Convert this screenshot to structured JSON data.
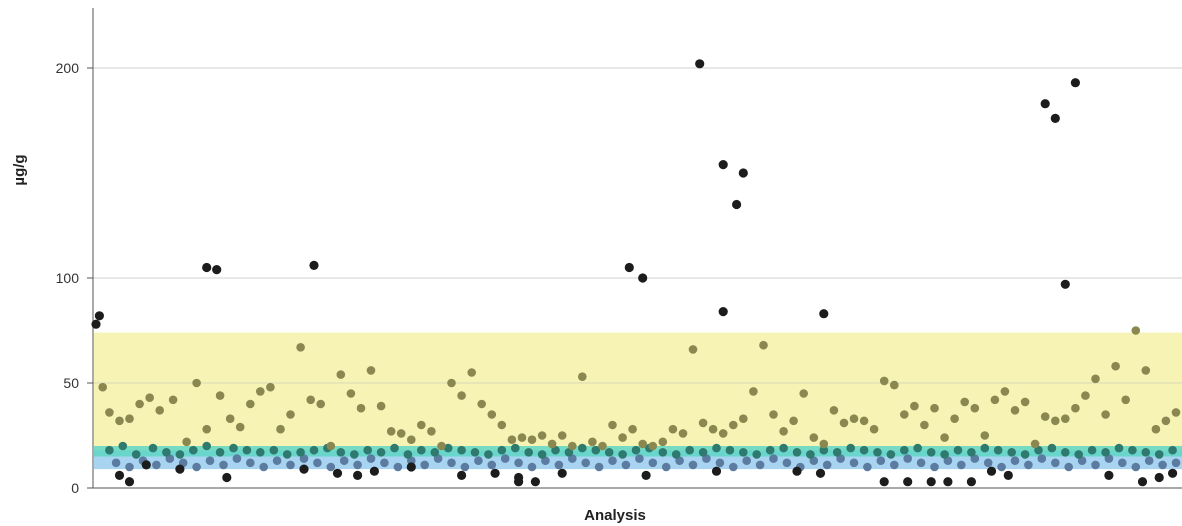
{
  "chart_data": {
    "type": "scatter",
    "title": "",
    "xlabel": "Analysis",
    "ylabel": "µg/g",
    "ylim": [
      0,
      228
    ],
    "y_ticks": [
      {
        "value": 0,
        "label": "0"
      },
      {
        "value": 50,
        "label": "50"
      },
      {
        "value": 100,
        "label": "100"
      },
      {
        "value": 200,
        "label": "200"
      }
    ],
    "grid": "horizontal",
    "reference_bands": [
      {
        "name": "yellow-band",
        "from": 18,
        "to": 74,
        "color": "#f7f3b4"
      },
      {
        "name": "blue-band",
        "from": 9,
        "to": 18,
        "color": "#a8d4f2"
      },
      {
        "name": "teal-band",
        "from": 15,
        "to": 20,
        "color": "#5fd6c4"
      }
    ],
    "colors": {
      "olive": "#8a8850",
      "dark": "#1c1c1c",
      "teal": "#2e7a6e",
      "blue": "#5c7ba0"
    },
    "series": [
      {
        "color_name": "dark",
        "points": [
          [
            1,
            78
          ],
          [
            2,
            82
          ],
          [
            34,
            105
          ],
          [
            37,
            104
          ],
          [
            66,
            106
          ],
          [
            160,
            105
          ],
          [
            164,
            100
          ],
          [
            181,
            202
          ],
          [
            188,
            154
          ],
          [
            192,
            135
          ],
          [
            194,
            150
          ],
          [
            188,
            84
          ],
          [
            218,
            83
          ],
          [
            284,
            183
          ],
          [
            287,
            176
          ],
          [
            290,
            97
          ],
          [
            293,
            193
          ],
          [
            8,
            6
          ],
          [
            11,
            3
          ],
          [
            16,
            11
          ],
          [
            26,
            9
          ],
          [
            40,
            5
          ],
          [
            63,
            9
          ],
          [
            73,
            7
          ],
          [
            79,
            6
          ],
          [
            84,
            8
          ],
          [
            95,
            10
          ],
          [
            110,
            6
          ],
          [
            120,
            7
          ],
          [
            127,
            5
          ],
          [
            140,
            7
          ],
          [
            127,
            3
          ],
          [
            132,
            3
          ],
          [
            165,
            6
          ],
          [
            186,
            8
          ],
          [
            210,
            8
          ],
          [
            217,
            7
          ],
          [
            236,
            3
          ],
          [
            243,
            3
          ],
          [
            250,
            3
          ],
          [
            255,
            3
          ],
          [
            262,
            3
          ],
          [
            268,
            8
          ],
          [
            273,
            6
          ],
          [
            303,
            6
          ],
          [
            313,
            3
          ],
          [
            318,
            5
          ],
          [
            322,
            7
          ]
        ]
      },
      {
        "color_name": "olive",
        "points": [
          [
            3,
            48
          ],
          [
            5,
            36
          ],
          [
            8,
            32
          ],
          [
            11,
            33
          ],
          [
            14,
            40
          ],
          [
            17,
            43
          ],
          [
            20,
            37
          ],
          [
            24,
            42
          ],
          [
            28,
            22
          ],
          [
            31,
            50
          ],
          [
            34,
            28
          ],
          [
            38,
            44
          ],
          [
            41,
            33
          ],
          [
            44,
            29
          ],
          [
            47,
            40
          ],
          [
            50,
            46
          ],
          [
            53,
            48
          ],
          [
            56,
            28
          ],
          [
            59,
            35
          ],
          [
            62,
            67
          ],
          [
            65,
            42
          ],
          [
            68,
            40
          ],
          [
            71,
            20
          ],
          [
            74,
            54
          ],
          [
            77,
            45
          ],
          [
            80,
            38
          ],
          [
            83,
            56
          ],
          [
            86,
            39
          ],
          [
            89,
            27
          ],
          [
            92,
            26
          ],
          [
            95,
            23
          ],
          [
            98,
            30
          ],
          [
            101,
            27
          ],
          [
            104,
            20
          ],
          [
            107,
            50
          ],
          [
            110,
            44
          ],
          [
            113,
            55
          ],
          [
            116,
            40
          ],
          [
            119,
            35
          ],
          [
            122,
            30
          ],
          [
            125,
            23
          ],
          [
            128,
            24
          ],
          [
            131,
            23
          ],
          [
            134,
            25
          ],
          [
            137,
            21
          ],
          [
            140,
            25
          ],
          [
            143,
            20
          ],
          [
            146,
            53
          ],
          [
            149,
            22
          ],
          [
            152,
            20
          ],
          [
            155,
            30
          ],
          [
            158,
            24
          ],
          [
            161,
            28
          ],
          [
            164,
            21
          ],
          [
            167,
            20
          ],
          [
            170,
            22
          ],
          [
            173,
            28
          ],
          [
            176,
            26
          ],
          [
            179,
            66
          ],
          [
            182,
            31
          ],
          [
            185,
            28
          ],
          [
            188,
            26
          ],
          [
            191,
            30
          ],
          [
            194,
            33
          ],
          [
            197,
            46
          ],
          [
            200,
            68
          ],
          [
            203,
            35
          ],
          [
            206,
            27
          ],
          [
            209,
            32
          ],
          [
            212,
            45
          ],
          [
            215,
            24
          ],
          [
            218,
            21
          ],
          [
            221,
            37
          ],
          [
            224,
            31
          ],
          [
            227,
            33
          ],
          [
            230,
            32
          ],
          [
            233,
            28
          ],
          [
            236,
            51
          ],
          [
            239,
            49
          ],
          [
            242,
            35
          ],
          [
            245,
            39
          ],
          [
            248,
            30
          ],
          [
            251,
            38
          ],
          [
            254,
            24
          ],
          [
            257,
            33
          ],
          [
            260,
            41
          ],
          [
            263,
            38
          ],
          [
            266,
            25
          ],
          [
            269,
            42
          ],
          [
            272,
            46
          ],
          [
            275,
            37
          ],
          [
            278,
            41
          ],
          [
            281,
            21
          ],
          [
            284,
            34
          ],
          [
            287,
            32
          ],
          [
            290,
            33
          ],
          [
            293,
            38
          ],
          [
            296,
            44
          ],
          [
            299,
            52
          ],
          [
            302,
            35
          ],
          [
            305,
            58
          ],
          [
            308,
            42
          ],
          [
            311,
            75
          ],
          [
            314,
            56
          ],
          [
            317,
            28
          ],
          [
            320,
            32
          ],
          [
            323,
            36
          ]
        ]
      },
      {
        "color_name": "teal",
        "points": [
          [
            5,
            18
          ],
          [
            9,
            20
          ],
          [
            13,
            16
          ],
          [
            18,
            19
          ],
          [
            22,
            17
          ],
          [
            26,
            16
          ],
          [
            30,
            18
          ],
          [
            34,
            20
          ],
          [
            38,
            17
          ],
          [
            42,
            19
          ],
          [
            46,
            18
          ],
          [
            50,
            17
          ],
          [
            54,
            18
          ],
          [
            58,
            16
          ],
          [
            62,
            17
          ],
          [
            66,
            18
          ],
          [
            70,
            19
          ],
          [
            74,
            17
          ],
          [
            78,
            16
          ],
          [
            82,
            18
          ],
          [
            86,
            17
          ],
          [
            90,
            19
          ],
          [
            94,
            16
          ],
          [
            98,
            18
          ],
          [
            102,
            17
          ],
          [
            106,
            19
          ],
          [
            110,
            18
          ],
          [
            114,
            17
          ],
          [
            118,
            16
          ],
          [
            122,
            18
          ],
          [
            126,
            19
          ],
          [
            130,
            17
          ],
          [
            134,
            16
          ],
          [
            138,
            18
          ],
          [
            142,
            17
          ],
          [
            146,
            19
          ],
          [
            150,
            18
          ],
          [
            154,
            17
          ],
          [
            158,
            16
          ],
          [
            162,
            18
          ],
          [
            166,
            19
          ],
          [
            170,
            17
          ],
          [
            174,
            16
          ],
          [
            178,
            18
          ],
          [
            182,
            17
          ],
          [
            186,
            19
          ],
          [
            190,
            18
          ],
          [
            194,
            17
          ],
          [
            198,
            16
          ],
          [
            202,
            18
          ],
          [
            206,
            19
          ],
          [
            210,
            17
          ],
          [
            214,
            16
          ],
          [
            218,
            18
          ],
          [
            222,
            17
          ],
          [
            226,
            19
          ],
          [
            230,
            18
          ],
          [
            234,
            17
          ],
          [
            238,
            16
          ],
          [
            242,
            18
          ],
          [
            246,
            19
          ],
          [
            250,
            17
          ],
          [
            254,
            16
          ],
          [
            258,
            18
          ],
          [
            262,
            17
          ],
          [
            266,
            19
          ],
          [
            270,
            18
          ],
          [
            274,
            17
          ],
          [
            278,
            16
          ],
          [
            282,
            18
          ],
          [
            286,
            19
          ],
          [
            290,
            17
          ],
          [
            294,
            16
          ],
          [
            298,
            18
          ],
          [
            302,
            17
          ],
          [
            306,
            19
          ],
          [
            310,
            18
          ],
          [
            314,
            17
          ],
          [
            318,
            16
          ],
          [
            322,
            18
          ]
        ]
      },
      {
        "color_name": "blue",
        "points": [
          [
            7,
            12
          ],
          [
            11,
            10
          ],
          [
            15,
            13
          ],
          [
            19,
            11
          ],
          [
            23,
            14
          ],
          [
            27,
            12
          ],
          [
            31,
            10
          ],
          [
            35,
            13
          ],
          [
            39,
            11
          ],
          [
            43,
            14
          ],
          [
            47,
            12
          ],
          [
            51,
            10
          ],
          [
            55,
            13
          ],
          [
            59,
            11
          ],
          [
            63,
            14
          ],
          [
            67,
            12
          ],
          [
            71,
            10
          ],
          [
            75,
            13
          ],
          [
            79,
            11
          ],
          [
            83,
            14
          ],
          [
            87,
            12
          ],
          [
            91,
            10
          ],
          [
            95,
            13
          ],
          [
            99,
            11
          ],
          [
            103,
            14
          ],
          [
            107,
            12
          ],
          [
            111,
            10
          ],
          [
            115,
            13
          ],
          [
            119,
            11
          ],
          [
            123,
            14
          ],
          [
            127,
            12
          ],
          [
            131,
            10
          ],
          [
            135,
            13
          ],
          [
            139,
            11
          ],
          [
            143,
            14
          ],
          [
            147,
            12
          ],
          [
            151,
            10
          ],
          [
            155,
            13
          ],
          [
            159,
            11
          ],
          [
            163,
            14
          ],
          [
            167,
            12
          ],
          [
            171,
            10
          ],
          [
            175,
            13
          ],
          [
            179,
            11
          ],
          [
            183,
            14
          ],
          [
            187,
            12
          ],
          [
            191,
            10
          ],
          [
            195,
            13
          ],
          [
            199,
            11
          ],
          [
            203,
            14
          ],
          [
            207,
            12
          ],
          [
            211,
            10
          ],
          [
            215,
            13
          ],
          [
            219,
            11
          ],
          [
            223,
            14
          ],
          [
            227,
            12
          ],
          [
            231,
            10
          ],
          [
            235,
            13
          ],
          [
            239,
            11
          ],
          [
            243,
            14
          ],
          [
            247,
            12
          ],
          [
            251,
            10
          ],
          [
            255,
            13
          ],
          [
            259,
            11
          ],
          [
            263,
            14
          ],
          [
            267,
            12
          ],
          [
            271,
            10
          ],
          [
            275,
            13
          ],
          [
            279,
            11
          ],
          [
            283,
            14
          ],
          [
            287,
            12
          ],
          [
            291,
            10
          ],
          [
            295,
            13
          ],
          [
            299,
            11
          ],
          [
            303,
            14
          ],
          [
            307,
            12
          ],
          [
            311,
            10
          ],
          [
            315,
            13
          ],
          [
            319,
            11
          ],
          [
            323,
            12
          ]
        ]
      }
    ]
  }
}
